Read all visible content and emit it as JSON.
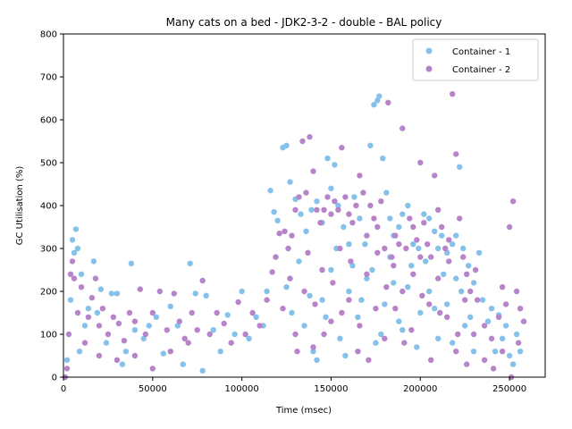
{
  "chart_data": {
    "type": "scatter",
    "title": "Many cats on a bed - JDK2-3-2 - double -  BAL policy",
    "xlabel": "Time (msec)",
    "ylabel": "GC Utilisation (%)",
    "xlim": [
      0,
      270000
    ],
    "ylim": [
      0,
      800
    ],
    "xticks": [
      0,
      50000,
      100000,
      150000,
      200000,
      250000
    ],
    "xtick_labels": [
      "0",
      "50000",
      "100000",
      "150000",
      "200000",
      "250000"
    ],
    "yticks": [
      0,
      100,
      200,
      300,
      400,
      500,
      600,
      700,
      800
    ],
    "ytick_labels": [
      "0",
      "100",
      "200",
      "300",
      "400",
      "500",
      "600",
      "700",
      "800"
    ],
    "grid": false,
    "legend_position": "upper right",
    "series": [
      {
        "name": "Container - 1",
        "color": "#85c1e9",
        "points": [
          [
            2000,
            40
          ],
          [
            4000,
            180
          ],
          [
            5000,
            320
          ],
          [
            6000,
            290
          ],
          [
            7000,
            345
          ],
          [
            8000,
            300
          ],
          [
            9000,
            60
          ],
          [
            10000,
            240
          ],
          [
            12000,
            120
          ],
          [
            14000,
            160
          ],
          [
            17000,
            270
          ],
          [
            19000,
            150
          ],
          [
            21000,
            205
          ],
          [
            24000,
            80
          ],
          [
            27000,
            195
          ],
          [
            30000,
            195
          ],
          [
            33000,
            30
          ],
          [
            35000,
            60
          ],
          [
            38000,
            265
          ],
          [
            40000,
            110
          ],
          [
            45000,
            90
          ],
          [
            48000,
            120
          ],
          [
            52000,
            140
          ],
          [
            56000,
            55
          ],
          [
            60000,
            165
          ],
          [
            64000,
            120
          ],
          [
            67000,
            30
          ],
          [
            71000,
            265
          ],
          [
            74000,
            195
          ],
          [
            78000,
            15
          ],
          [
            80000,
            190
          ],
          [
            84000,
            110
          ],
          [
            88000,
            60
          ],
          [
            92000,
            145
          ],
          [
            96000,
            100
          ],
          [
            100000,
            200
          ],
          [
            104000,
            90
          ],
          [
            108000,
            140
          ],
          [
            112000,
            120
          ],
          [
            114000,
            200
          ],
          [
            116000,
            435
          ],
          [
            118000,
            385
          ],
          [
            120000,
            365
          ],
          [
            123000,
            535
          ],
          [
            125000,
            540
          ],
          [
            127000,
            455
          ],
          [
            130000,
            415
          ],
          [
            133000,
            380
          ],
          [
            136000,
            340
          ],
          [
            139000,
            390
          ],
          [
            142000,
            410
          ],
          [
            145000,
            360
          ],
          [
            148000,
            510
          ],
          [
            150000,
            440
          ],
          [
            152000,
            495
          ],
          [
            154000,
            400
          ],
          [
            157000,
            350
          ],
          [
            160000,
            310
          ],
          [
            163000,
            420
          ],
          [
            166000,
            370
          ],
          [
            169000,
            310
          ],
          [
            172000,
            540
          ],
          [
            174000,
            635
          ],
          [
            176000,
            645
          ],
          [
            177000,
            655
          ],
          [
            179000,
            510
          ],
          [
            181000,
            430
          ],
          [
            183000,
            370
          ],
          [
            185000,
            330
          ],
          [
            188000,
            350
          ],
          [
            190000,
            380
          ],
          [
            193000,
            400
          ],
          [
            196000,
            310
          ],
          [
            199000,
            300
          ],
          [
            202000,
            380
          ],
          [
            205000,
            370
          ],
          [
            208000,
            340
          ],
          [
            210000,
            300
          ],
          [
            212000,
            330
          ],
          [
            215000,
            290
          ],
          [
            218000,
            310
          ],
          [
            220000,
            330
          ],
          [
            222000,
            490
          ],
          [
            224000,
            300
          ],
          [
            227000,
            260
          ],
          [
            230000,
            220
          ],
          [
            233000,
            290
          ],
          [
            235000,
            180
          ],
          [
            238000,
            130
          ],
          [
            240000,
            160
          ],
          [
            242000,
            60
          ],
          [
            244000,
            145
          ],
          [
            246000,
            90
          ],
          [
            248000,
            120
          ],
          [
            250000,
            50
          ],
          [
            252000,
            30
          ],
          [
            254000,
            100
          ],
          [
            256000,
            60
          ],
          [
            135000,
            120
          ],
          [
            140000,
            60
          ],
          [
            145000,
            180
          ],
          [
            150000,
            250
          ],
          [
            155000,
            90
          ],
          [
            160000,
            200
          ],
          [
            165000,
            140
          ],
          [
            170000,
            230
          ],
          [
            175000,
            80
          ],
          [
            180000,
            170
          ],
          [
            185000,
            220
          ],
          [
            190000,
            110
          ],
          [
            195000,
            260
          ],
          [
            200000,
            150
          ],
          [
            205000,
            200
          ],
          [
            210000,
            90
          ],
          [
            215000,
            170
          ],
          [
            220000,
            230
          ],
          [
            225000,
            120
          ],
          [
            230000,
            60
          ],
          [
            125000,
            210
          ],
          [
            128000,
            150
          ],
          [
            132000,
            270
          ],
          [
            138000,
            190
          ],
          [
            142000,
            40
          ],
          [
            147000,
            140
          ],
          [
            153000,
            300
          ],
          [
            158000,
            50
          ],
          [
            162000,
            260
          ],
          [
            167000,
            180
          ],
          [
            173000,
            250
          ],
          [
            178000,
            100
          ],
          [
            183000,
            280
          ],
          [
            188000,
            130
          ],
          [
            193000,
            210
          ],
          [
            198000,
            70
          ],
          [
            203000,
            270
          ],
          [
            208000,
            160
          ],
          [
            213000,
            240
          ],
          [
            218000,
            80
          ],
          [
            223000,
            200
          ],
          [
            228000,
            140
          ]
        ]
      },
      {
        "name": "Container - 2",
        "color": "#b784c9",
        "points": [
          [
            1000,
            0
          ],
          [
            2000,
            20
          ],
          [
            3000,
            100
          ],
          [
            4000,
            240
          ],
          [
            5000,
            270
          ],
          [
            6000,
            230
          ],
          [
            8000,
            150
          ],
          [
            10000,
            210
          ],
          [
            12000,
            80
          ],
          [
            14000,
            140
          ],
          [
            16000,
            185
          ],
          [
            18000,
            230
          ],
          [
            20000,
            120
          ],
          [
            22000,
            160
          ],
          [
            25000,
            100
          ],
          [
            28000,
            140
          ],
          [
            31000,
            125
          ],
          [
            34000,
            85
          ],
          [
            37000,
            150
          ],
          [
            40000,
            130
          ],
          [
            43000,
            205
          ],
          [
            46000,
            100
          ],
          [
            50000,
            150
          ],
          [
            54000,
            200
          ],
          [
            58000,
            110
          ],
          [
            62000,
            195
          ],
          [
            65000,
            130
          ],
          [
            68000,
            90
          ],
          [
            72000,
            150
          ],
          [
            75000,
            110
          ],
          [
            78000,
            225
          ],
          [
            82000,
            100
          ],
          [
            86000,
            150
          ],
          [
            90000,
            125
          ],
          [
            94000,
            80
          ],
          [
            98000,
            175
          ],
          [
            102000,
            100
          ],
          [
            106000,
            150
          ],
          [
            110000,
            120
          ],
          [
            114000,
            180
          ],
          [
            117000,
            245
          ],
          [
            119000,
            280
          ],
          [
            121000,
            335
          ],
          [
            124000,
            340
          ],
          [
            126000,
            300
          ],
          [
            128000,
            330
          ],
          [
            130000,
            390
          ],
          [
            132000,
            420
          ],
          [
            134000,
            550
          ],
          [
            136000,
            430
          ],
          [
            138000,
            560
          ],
          [
            140000,
            480
          ],
          [
            142000,
            390
          ],
          [
            144000,
            360
          ],
          [
            146000,
            390
          ],
          [
            148000,
            420
          ],
          [
            150000,
            380
          ],
          [
            152000,
            410
          ],
          [
            154000,
            390
          ],
          [
            156000,
            535
          ],
          [
            158000,
            420
          ],
          [
            160000,
            380
          ],
          [
            162000,
            360
          ],
          [
            164000,
            400
          ],
          [
            166000,
            470
          ],
          [
            168000,
            430
          ],
          [
            170000,
            330
          ],
          [
            172000,
            400
          ],
          [
            174000,
            370
          ],
          [
            176000,
            350
          ],
          [
            178000,
            410
          ],
          [
            180000,
            300
          ],
          [
            182000,
            640
          ],
          [
            184000,
            280
          ],
          [
            186000,
            330
          ],
          [
            188000,
            310
          ],
          [
            190000,
            580
          ],
          [
            192000,
            300
          ],
          [
            194000,
            370
          ],
          [
            196000,
            350
          ],
          [
            198000,
            320
          ],
          [
            200000,
            500
          ],
          [
            202000,
            360
          ],
          [
            204000,
            310
          ],
          [
            206000,
            280
          ],
          [
            208000,
            470
          ],
          [
            210000,
            390
          ],
          [
            212000,
            350
          ],
          [
            214000,
            300
          ],
          [
            216000,
            320
          ],
          [
            218000,
            660
          ],
          [
            220000,
            520
          ],
          [
            222000,
            370
          ],
          [
            224000,
            280
          ],
          [
            226000,
            240
          ],
          [
            228000,
            200
          ],
          [
            232000,
            180
          ],
          [
            236000,
            120
          ],
          [
            240000,
            90
          ],
          [
            244000,
            140
          ],
          [
            246000,
            210
          ],
          [
            248000,
            170
          ],
          [
            250000,
            350
          ],
          [
            252000,
            410
          ],
          [
            254000,
            200
          ],
          [
            256000,
            160
          ],
          [
            258000,
            130
          ],
          [
            130000,
            100
          ],
          [
            135000,
            200
          ],
          [
            140000,
            70
          ],
          [
            145000,
            250
          ],
          [
            150000,
            130
          ],
          [
            155000,
            300
          ],
          [
            160000,
            180
          ],
          [
            165000,
            60
          ],
          [
            170000,
            240
          ],
          [
            175000,
            160
          ],
          [
            180000,
            90
          ],
          [
            185000,
            260
          ],
          [
            190000,
            200
          ],
          [
            195000,
            110
          ],
          [
            200000,
            280
          ],
          [
            205000,
            170
          ],
          [
            210000,
            230
          ],
          [
            215000,
            140
          ],
          [
            220000,
            60
          ],
          [
            225000,
            180
          ],
          [
            230000,
            100
          ],
          [
            123000,
            160
          ],
          [
            127000,
            230
          ],
          [
            131000,
            60
          ],
          [
            137000,
            290
          ],
          [
            141000,
            170
          ],
          [
            146000,
            100
          ],
          [
            151000,
            220
          ],
          [
            156000,
            150
          ],
          [
            161000,
            270
          ],
          [
            166000,
            120
          ],
          [
            171000,
            40
          ],
          [
            176000,
            290
          ],
          [
            181000,
            210
          ],
          [
            186000,
            160
          ],
          [
            191000,
            80
          ],
          [
            196000,
            240
          ],
          [
            201000,
            190
          ],
          [
            206000,
            40
          ],
          [
            211000,
            150
          ],
          [
            216000,
            270
          ],
          [
            221000,
            100
          ],
          [
            226000,
            30
          ],
          [
            231000,
            250
          ],
          [
            236000,
            40
          ],
          [
            241000,
            20
          ],
          [
            246000,
            60
          ],
          [
            251000,
            0
          ],
          [
            255000,
            80
          ],
          [
            70000,
            80
          ],
          [
            60000,
            60
          ],
          [
            50000,
            20
          ],
          [
            40000,
            50
          ],
          [
            30000,
            40
          ],
          [
            20000,
            50
          ]
        ]
      }
    ]
  }
}
